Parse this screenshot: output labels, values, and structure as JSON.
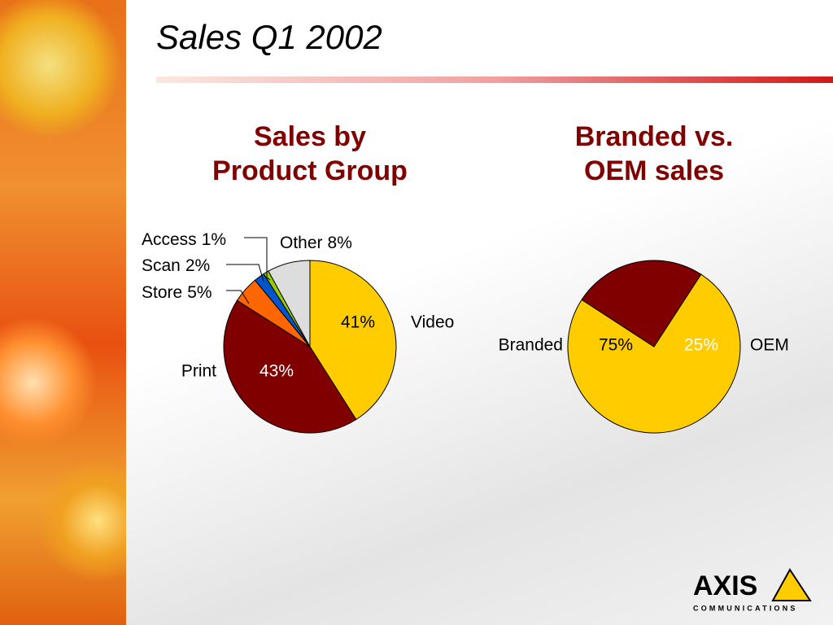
{
  "title": "Sales Q1 2002",
  "chart_data": [
    {
      "type": "pie",
      "title": [
        "Sales by",
        "Product Group"
      ],
      "categories": [
        "Video",
        "Print",
        "Store",
        "Scan",
        "Access",
        "Other"
      ],
      "values": [
        41,
        43,
        5,
        2,
        1,
        8
      ],
      "value_labels": [
        "41%",
        "43%",
        "5%",
        "2%",
        "1%",
        "8%"
      ],
      "colors": [
        "#ffcc00",
        "#800000",
        "#ff6600",
        "#0055cc",
        "#99cc00",
        "#dddddd"
      ]
    },
    {
      "type": "pie",
      "title": [
        "Branded vs.",
        "OEM sales"
      ],
      "categories": [
        "Branded",
        "OEM"
      ],
      "values": [
        75,
        25
      ],
      "value_labels": [
        "75%",
        "25%"
      ],
      "colors": [
        "#ffcc00",
        "#800000"
      ]
    }
  ],
  "logo": {
    "name": "AXIS",
    "tagline": "COMMUNICATIONS"
  }
}
